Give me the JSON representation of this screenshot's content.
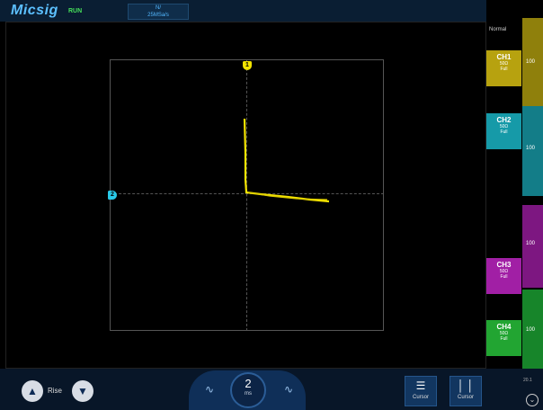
{
  "header": {
    "logo": "Micsig",
    "run_status": "RUN",
    "acq_line1": "N/",
    "acq_line2": "25MSa/s"
  },
  "trigger": {
    "mode": "Normal"
  },
  "channels": [
    {
      "name": "CH1",
      "line2": "50Ω",
      "line3": "Full",
      "color": "#b7a20f",
      "bar_label": "100"
    },
    {
      "name": "CH2",
      "line2": "50Ω",
      "line3": "Full",
      "color": "#169aa8",
      "bar_label": "100"
    },
    {
      "name": "CH3",
      "line2": "50Ω",
      "line3": "Full",
      "color": "#a11fa5",
      "bar_label": "100"
    },
    {
      "name": "CH4",
      "line2": "50Ω",
      "line3": "Full",
      "color": "#22a532",
      "bar_label": "100"
    }
  ],
  "markers": {
    "ch1": "1",
    "ch2": "2"
  },
  "bottom": {
    "edge_label": "Rise",
    "timebase_value": "2",
    "timebase_unit": "ms",
    "cursor1_label": "Cursor",
    "cursor2_label": "Cursor",
    "misc": "20.1"
  },
  "icons": [
    "arrow-up-icon",
    "arrow-down-icon",
    "wave-left-icon",
    "wave-right-icon",
    "cursor-horizontal-icon",
    "cursor-vertical-icon",
    "menu-chevron-icon"
  ]
}
